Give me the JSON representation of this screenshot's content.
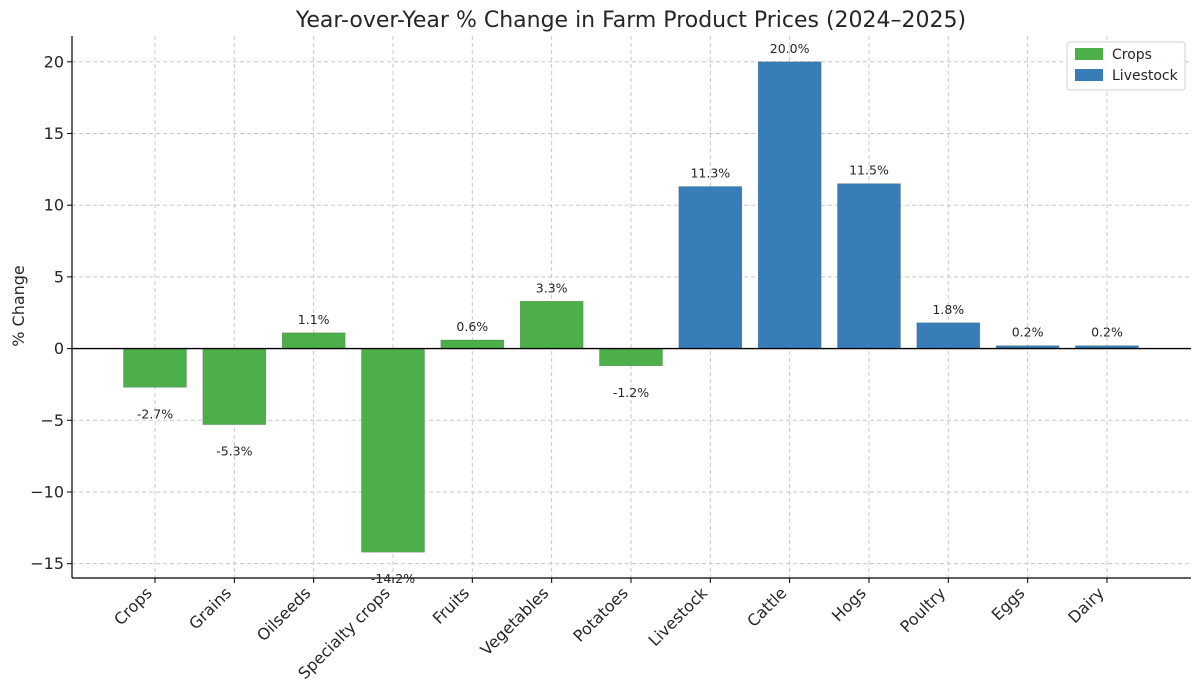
{
  "chart_data": {
    "type": "bar",
    "title": "Year-over-Year % Change in Farm Product Prices (2024–2025)",
    "xlabel": "",
    "ylabel": "% Change",
    "ylim": [
      -16,
      21.8
    ],
    "yticks": [
      -15,
      -10,
      -5,
      0,
      5,
      10,
      15,
      20
    ],
    "ytick_labels": [
      "−15",
      "−10",
      "−5",
      "0",
      "5",
      "10",
      "15",
      "20"
    ],
    "grid": true,
    "legend_position": "top-right",
    "series": [
      {
        "name": "Crops",
        "color": "#4daf4a"
      },
      {
        "name": "Livestock",
        "color": "#377eb8"
      }
    ],
    "categories": [
      "Crops",
      "Grains",
      "Oilseeds",
      "Specialty crops",
      "Fruits",
      "Vegetables",
      "Potatoes",
      "Livestock",
      "Cattle",
      "Hogs",
      "Poultry",
      "Eggs",
      "Dairy"
    ],
    "values": [
      -2.7,
      -5.3,
      1.1,
      -14.2,
      0.6,
      3.3,
      -1.2,
      11.3,
      20.0,
      11.5,
      1.8,
      0.2,
      0.2
    ],
    "bar_series": [
      "Crops",
      "Crops",
      "Crops",
      "Crops",
      "Crops",
      "Crops",
      "Crops",
      "Livestock",
      "Livestock",
      "Livestock",
      "Livestock",
      "Livestock",
      "Livestock"
    ],
    "data_labels": [
      "-2.7%",
      "-5.3%",
      "1.1%",
      "-14.2%",
      "0.6%",
      "3.3%",
      "-1.2%",
      "11.3%",
      "20.0%",
      "11.5%",
      "1.8%",
      "0.2%",
      "0.2%"
    ]
  }
}
